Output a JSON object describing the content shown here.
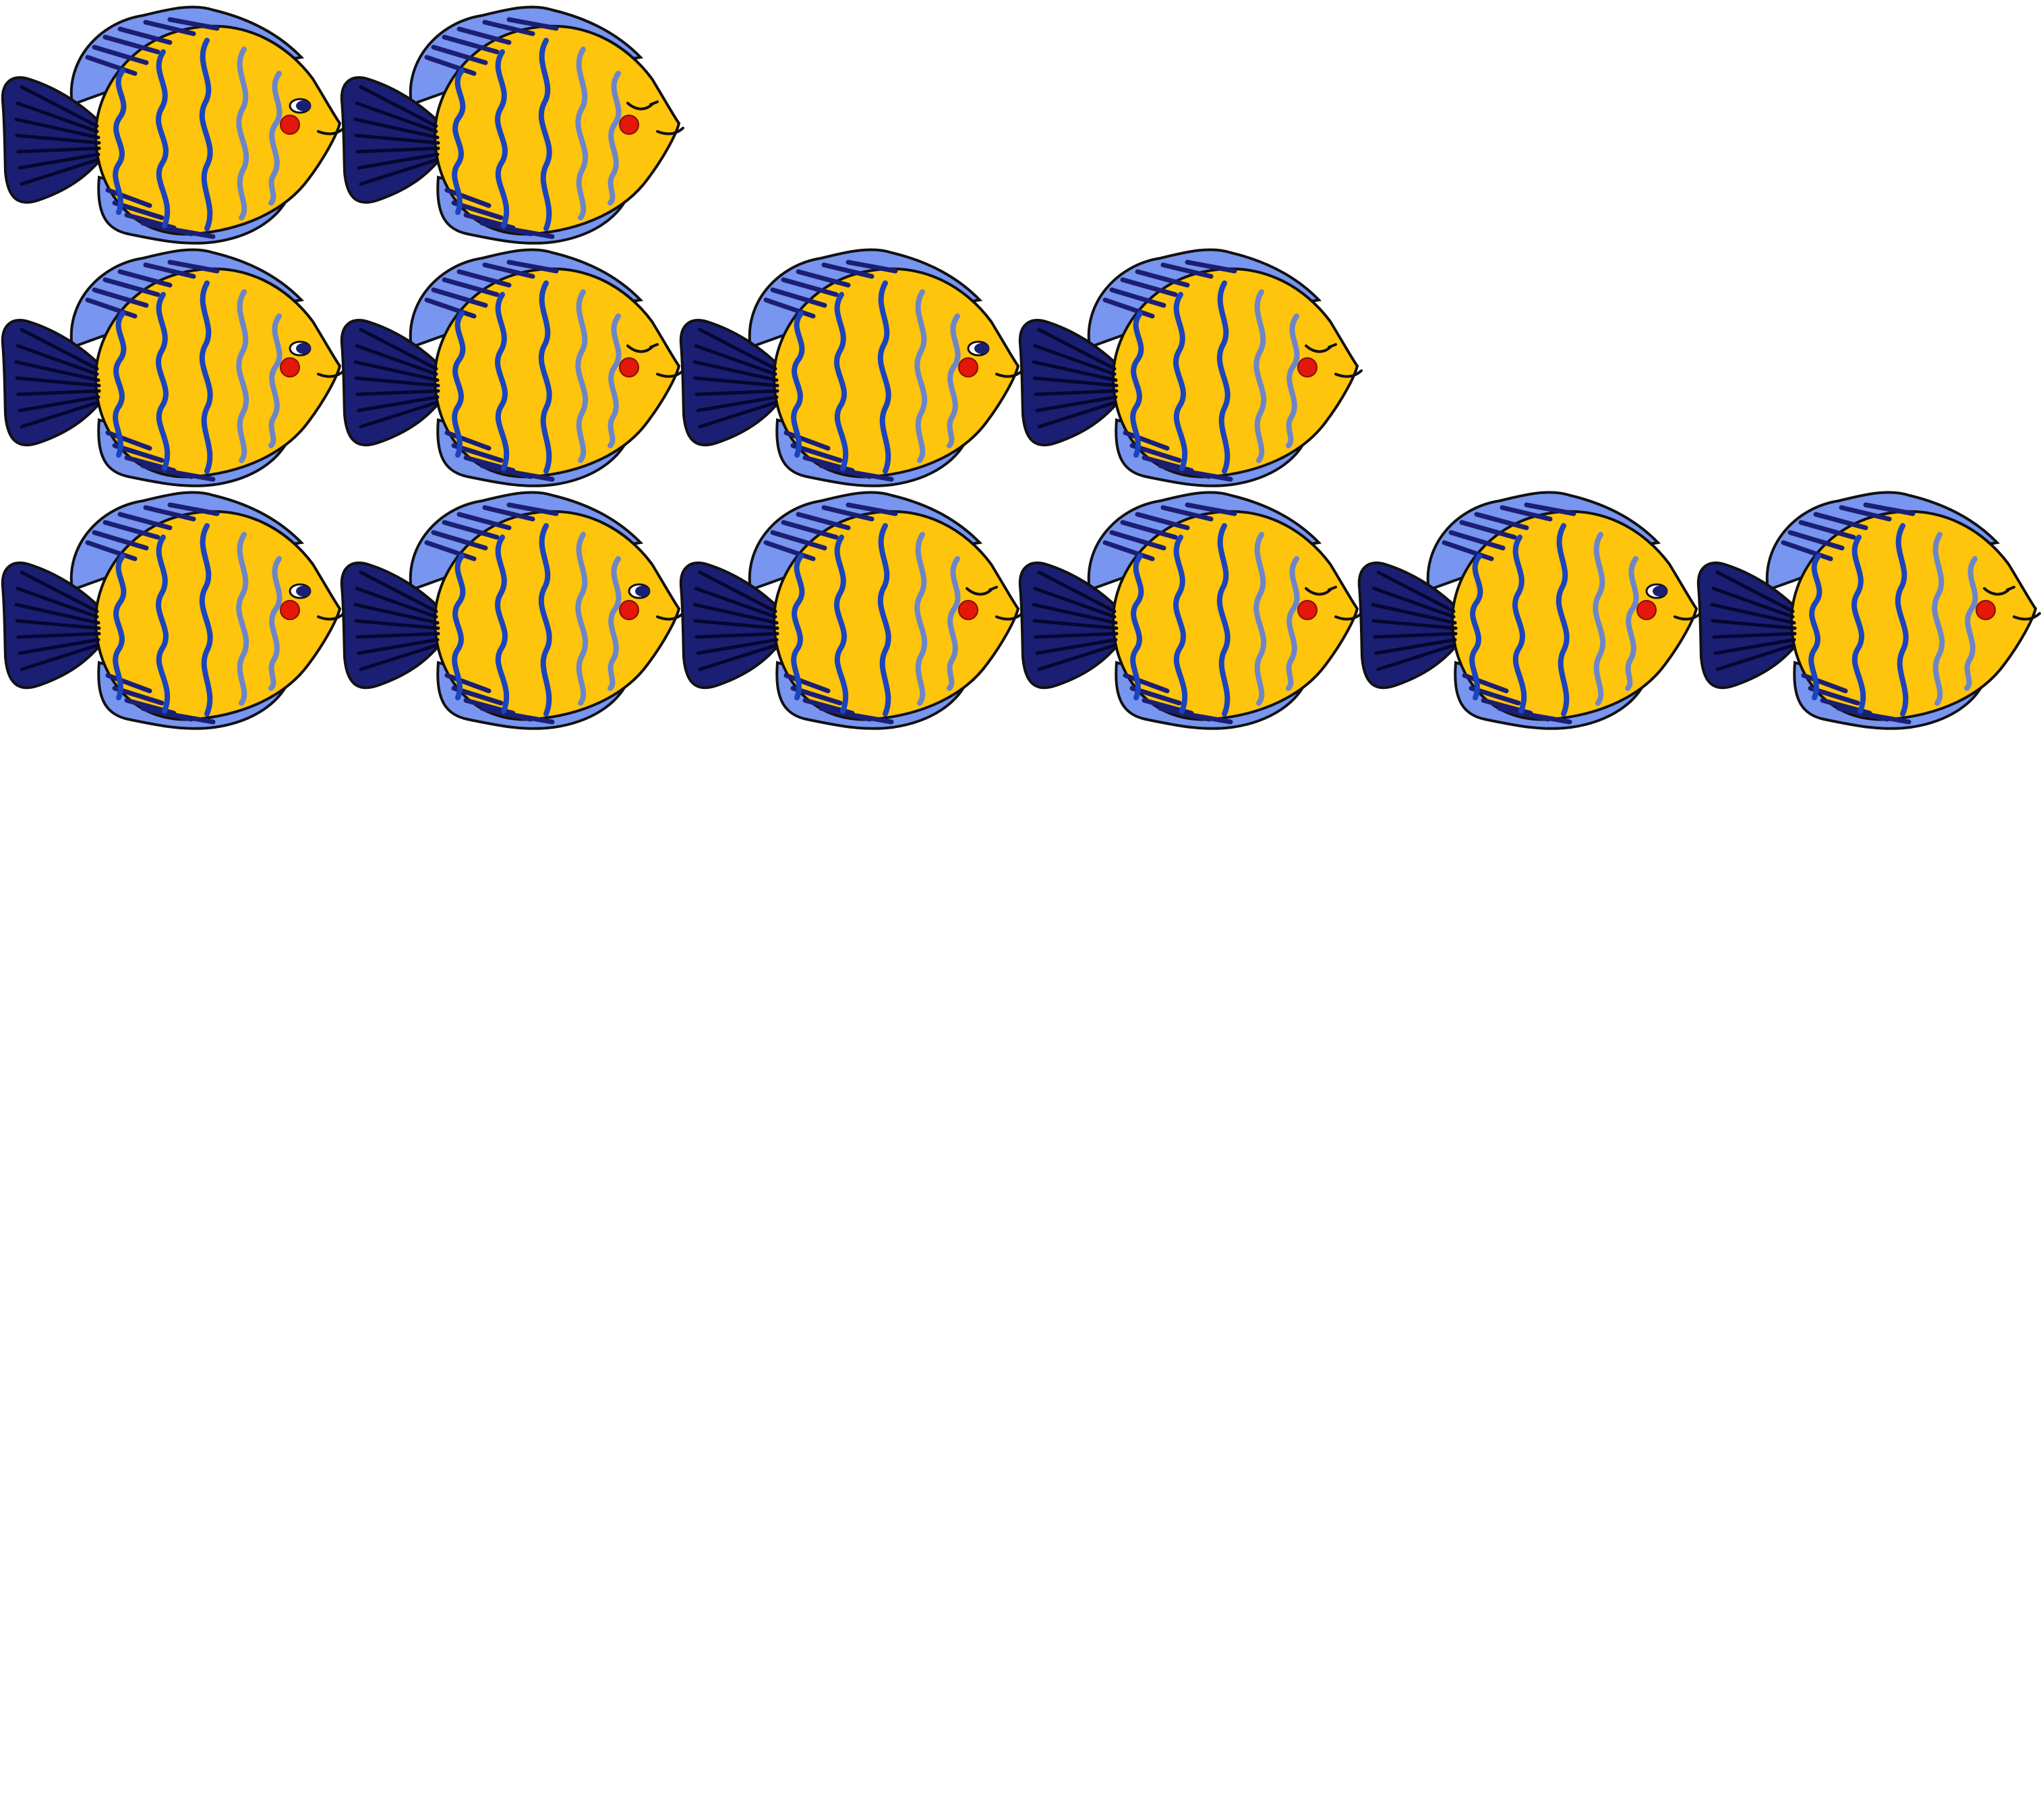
{
  "scene": {
    "background_color": "#ffffff",
    "object_icon": "yellow-striped-fish-icon",
    "rows": [
      {
        "name": "row-1",
        "count": 2,
        "fish": [
          {
            "eye": "open"
          },
          {
            "eye": "closed"
          }
        ]
      },
      {
        "name": "row-2",
        "count": 4,
        "fish": [
          {
            "eye": "open"
          },
          {
            "eye": "closed"
          },
          {
            "eye": "open"
          },
          {
            "eye": "closed"
          }
        ]
      },
      {
        "name": "row-3",
        "count": 6,
        "fish": [
          {
            "eye": "open"
          },
          {
            "eye": "open"
          },
          {
            "eye": "closed"
          },
          {
            "eye": "closed"
          },
          {
            "eye": "open"
          },
          {
            "eye": "closed"
          }
        ]
      }
    ]
  },
  "colors": {
    "body": "#ffc40c",
    "tail": "#1b1f73",
    "fin": "#7895f0",
    "stripe_dark": "#1b44bd",
    "stripe_light": "#6d86c9",
    "cheek": "#e3170a",
    "outline": "#111111",
    "eye": "#1b1f73"
  }
}
